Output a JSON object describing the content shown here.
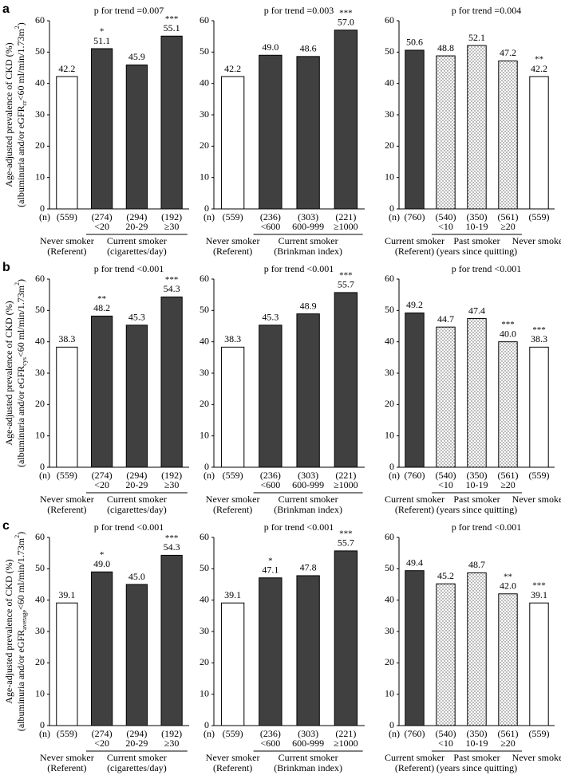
{
  "chart_data": [
    {
      "type": "bar",
      "panel_label": "a",
      "title": "p for trend =0.007",
      "ylabel": {
        "line1": "Age-adjusted prevalence of CKD (%)",
        "start": "(albuminuria and/or eGFR",
        "sub": "cr",
        "middle": "<60 ml/min/1.73m",
        "sup": "2",
        "end": ")"
      },
      "ylim": [
        0,
        60
      ],
      "yticks": [
        0,
        10,
        20,
        30,
        40,
        50,
        60
      ],
      "n_header": "(n)",
      "groups": [
        {
          "name": "Never smoker",
          "note": "(Referent)",
          "bars": [
            {
              "n": "(559)",
              "category": null,
              "value": 42.2,
              "value_label": "42.2",
              "color": "#ffffff"
            }
          ]
        },
        {
          "name": "Current smoker",
          "note": "(cigarettes/day)",
          "bars": [
            {
              "n": "(274)",
              "category": "<20",
              "value": 51.1,
              "value_label": "51.1",
              "stars": "*",
              "color": "#404040"
            },
            {
              "n": "(294)",
              "category": "20-29",
              "value": 45.9,
              "value_label": "45.9",
              "color": "#404040"
            },
            {
              "n": "(192)",
              "category": "≥30",
              "value": 55.1,
              "value_label": "55.1",
              "stars": "***",
              "color": "#404040"
            }
          ]
        }
      ]
    },
    {
      "type": "bar",
      "title": "p for trend =0.003",
      "ylim": [
        0,
        60
      ],
      "yticks": [
        0,
        10,
        20,
        30,
        40,
        50,
        60
      ],
      "n_header": "(n)",
      "groups": [
        {
          "name": "Never smoker",
          "note": "(Referent)",
          "bars": [
            {
              "n": "(559)",
              "category": null,
              "value": 42.2,
              "value_label": "42.2",
              "color": "#ffffff"
            }
          ]
        },
        {
          "name": "Current smoker",
          "note": "(Brinkman  index)",
          "bars": [
            {
              "n": "(236)",
              "category": "<600",
              "value": 49.0,
              "value_label": "49.0",
              "color": "#404040"
            },
            {
              "n": "(303)",
              "category": "600-999",
              "value": 48.6,
              "value_label": "48.6",
              "color": "#404040"
            },
            {
              "n": "(221)",
              "category": "≥1000",
              "value": 57.0,
              "value_label": "57.0",
              "stars": "***",
              "color": "#404040"
            }
          ]
        }
      ]
    },
    {
      "type": "bar",
      "title": "p for trend =0.004",
      "ylim": [
        0,
        60
      ],
      "yticks": [
        0,
        10,
        20,
        30,
        40,
        50,
        60
      ],
      "n_header": "(n)",
      "groups": [
        {
          "name": "Current smoker",
          "note": "(Referent)",
          "bars": [
            {
              "n": "(760)",
              "category": null,
              "value": 50.6,
              "value_label": "50.6",
              "color": "#404040"
            }
          ]
        },
        {
          "name": "Past smoker",
          "note": "(years since quitting)",
          "bars": [
            {
              "n": "(540)",
              "category": "<10",
              "value": 48.8,
              "value_label": "48.8",
              "color": "#ffffff",
              "pattern": "dots"
            },
            {
              "n": "(350)",
              "category": "10-19",
              "value": 52.1,
              "value_label": "52.1",
              "color": "#ffffff",
              "pattern": "dots"
            },
            {
              "n": "(561)",
              "category": "≥20",
              "value": 47.2,
              "value_label": "47.2",
              "color": "#ffffff",
              "pattern": "dots"
            }
          ]
        },
        {
          "name": "Never smoker",
          "bars": [
            {
              "n": "(559)",
              "category": null,
              "value": 42.2,
              "value_label": "42.2",
              "stars": "**",
              "color": "#ffffff"
            }
          ]
        }
      ]
    },
    {
      "type": "bar",
      "panel_label": "b",
      "title": "p for trend <0.001",
      "ylabel": {
        "line1": "Age-adjusted prevalence of CKD (%)",
        "start": "(albuminuria and/or eGFR",
        "sub": "cys",
        "middle": "<60 ml/min/1.73m",
        "sup": "2",
        "end": ")"
      },
      "ylim": [
        0,
        60
      ],
      "yticks": [
        0,
        10,
        20,
        30,
        40,
        50,
        60
      ],
      "n_header": "(n)",
      "groups": [
        {
          "name": "Never smoker",
          "note": "(Referent)",
          "bars": [
            {
              "n": "(559)",
              "category": null,
              "value": 38.3,
              "value_label": "38.3",
              "color": "#ffffff"
            }
          ]
        },
        {
          "name": "Current smoker",
          "note": "(cigarettes/day)",
          "bars": [
            {
              "n": "(274)",
              "category": "<20",
              "value": 48.2,
              "value_label": "48.2",
              "stars": "**",
              "color": "#404040"
            },
            {
              "n": "(294)",
              "category": "20-29",
              "value": 45.3,
              "value_label": "45.3",
              "color": "#404040"
            },
            {
              "n": "(192)",
              "category": "≥30",
              "value": 54.3,
              "value_label": "54.3",
              "stars": "***",
              "color": "#404040"
            }
          ]
        }
      ]
    },
    {
      "type": "bar",
      "title": "p for trend <0.001",
      "ylim": [
        0,
        60
      ],
      "yticks": [
        0,
        10,
        20,
        30,
        40,
        50,
        60
      ],
      "n_header": "(n)",
      "groups": [
        {
          "name": "Never smoker",
          "note": "(Referent)",
          "bars": [
            {
              "n": "(559)",
              "category": null,
              "value": 38.3,
              "value_label": "38.3",
              "color": "#ffffff"
            }
          ]
        },
        {
          "name": "Current smoker",
          "note": "(Brinkman  index)",
          "bars": [
            {
              "n": "(236)",
              "category": "<600",
              "value": 45.3,
              "value_label": "45.3",
              "color": "#404040"
            },
            {
              "n": "(303)",
              "category": "600-999",
              "value": 48.9,
              "value_label": "48.9",
              "color": "#404040"
            },
            {
              "n": "(221)",
              "category": "≥1000",
              "value": 55.7,
              "value_label": "55.7",
              "stars": "***",
              "color": "#404040"
            }
          ]
        }
      ]
    },
    {
      "type": "bar",
      "title": "p for trend <0.001",
      "ylim": [
        0,
        60
      ],
      "yticks": [
        0,
        10,
        20,
        30,
        40,
        50,
        60
      ],
      "n_header": "(n)",
      "groups": [
        {
          "name": "Current smoker",
          "note": "(Referent)",
          "bars": [
            {
              "n": "(760)",
              "category": null,
              "value": 49.2,
              "value_label": "49.2",
              "color": "#404040"
            }
          ]
        },
        {
          "name": "Past smoker",
          "note": "(years since quitting)",
          "bars": [
            {
              "n": "(540)",
              "category": "<10",
              "value": 44.7,
              "value_label": "44.7",
              "color": "#ffffff",
              "pattern": "dots"
            },
            {
              "n": "(350)",
              "category": "10-19",
              "value": 47.4,
              "value_label": "47.4",
              "color": "#ffffff",
              "pattern": "dots"
            },
            {
              "n": "(561)",
              "category": "≥20",
              "value": 40.0,
              "value_label": "40.0",
              "stars": "***",
              "color": "#ffffff",
              "pattern": "dots"
            }
          ]
        },
        {
          "name": "Never smoker",
          "bars": [
            {
              "n": "(559)",
              "category": null,
              "value": 38.3,
              "value_label": "38.3",
              "stars": "***",
              "color": "#ffffff"
            }
          ]
        }
      ]
    },
    {
      "type": "bar",
      "panel_label": "c",
      "title": "p for trend <0.001",
      "ylabel": {
        "line1": "Age-adjusted prevalence of CKD (%)",
        "start": "(albuminuria and/or eGFR",
        "sub": "average",
        "middle": "<60 ml/min/1.73m",
        "sup": "2",
        "end": ")"
      },
      "ylim": [
        0,
        60
      ],
      "yticks": [
        0,
        10,
        20,
        30,
        40,
        50,
        60
      ],
      "n_header": "(n)",
      "groups": [
        {
          "name": "Never smoker",
          "note": "(Referent)",
          "bars": [
            {
              "n": "(559)",
              "category": null,
              "value": 39.1,
              "value_label": "39.1",
              "color": "#ffffff"
            }
          ]
        },
        {
          "name": "Current smoker",
          "note": "(cigarettes/day)",
          "bars": [
            {
              "n": "(274)",
              "category": "<20",
              "value": 49.0,
              "value_label": "49.0",
              "stars": "*",
              "color": "#404040"
            },
            {
              "n": "(294)",
              "category": "20-29",
              "value": 45.0,
              "value_label": "45.0",
              "color": "#404040"
            },
            {
              "n": "(192)",
              "category": "≥30",
              "value": 54.3,
              "value_label": "54.3",
              "stars": "***",
              "color": "#404040"
            }
          ]
        }
      ]
    },
    {
      "type": "bar",
      "title": "p for trend <0.001",
      "ylim": [
        0,
        60
      ],
      "yticks": [
        0,
        10,
        20,
        30,
        40,
        50,
        60
      ],
      "n_header": "(n)",
      "groups": [
        {
          "name": "Never smoker",
          "note": "(Referent)",
          "bars": [
            {
              "n": "(559)",
              "category": null,
              "value": 39.1,
              "value_label": "39.1",
              "color": "#ffffff"
            }
          ]
        },
        {
          "name": "Current smoker",
          "note": "(Brinkman  index)",
          "bars": [
            {
              "n": "(236)",
              "category": "<600",
              "value": 47.1,
              "value_label": "47.1",
              "stars": "*",
              "color": "#404040"
            },
            {
              "n": "(303)",
              "category": "600-999",
              "value": 47.8,
              "value_label": "47.8",
              "color": "#404040"
            },
            {
              "n": "(221)",
              "category": "≥1000",
              "value": 55.7,
              "value_label": "55.7",
              "stars": "***",
              "color": "#404040"
            }
          ]
        }
      ]
    },
    {
      "type": "bar",
      "title": "p for trend <0.001",
      "ylim": [
        0,
        60
      ],
      "yticks": [
        0,
        10,
        20,
        30,
        40,
        50,
        60
      ],
      "n_header": "(n)",
      "groups": [
        {
          "name": "Current smoker",
          "note": "(Referent)",
          "bars": [
            {
              "n": "(760)",
              "category": null,
              "value": 49.4,
              "value_label": "49.4",
              "color": "#404040"
            }
          ]
        },
        {
          "name": "Past smoker",
          "note": "(years since quitting)",
          "bars": [
            {
              "n": "(540)",
              "category": "<10",
              "value": 45.2,
              "value_label": "45.2",
              "color": "#ffffff",
              "pattern": "dots"
            },
            {
              "n": "(350)",
              "category": "10-19",
              "value": 48.7,
              "value_label": "48.7",
              "color": "#ffffff",
              "pattern": "dots"
            },
            {
              "n": "(561)",
              "category": "≥20",
              "value": 42.0,
              "value_label": "42.0",
              "stars": "**",
              "color": "#ffffff",
              "pattern": "dots"
            }
          ]
        },
        {
          "name": "Never smoker",
          "bars": [
            {
              "n": "(559)",
              "category": null,
              "value": 39.1,
              "value_label": "39.1",
              "stars": "***",
              "color": "#ffffff"
            }
          ]
        }
      ]
    }
  ]
}
